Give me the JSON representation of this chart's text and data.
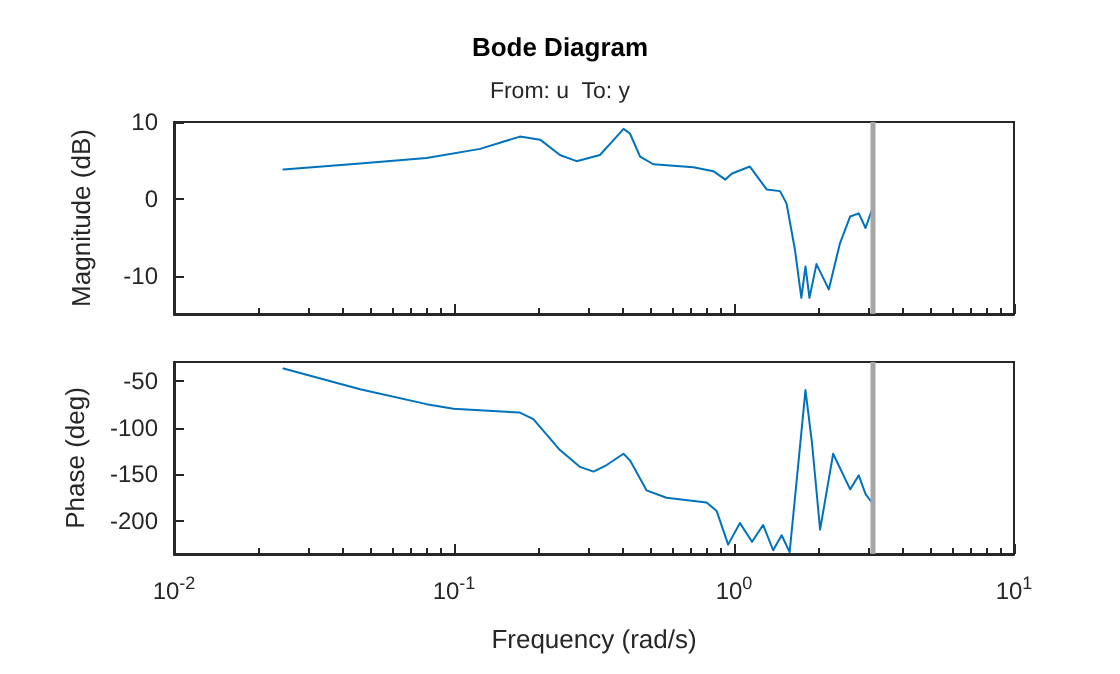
{
  "chart_data": [
    {
      "type": "line",
      "title": "Bode Diagram",
      "subtitle": "From: u  To: y",
      "ylabel": "Magnitude (dB)",
      "log": "x",
      "grid": false,
      "marker": "none",
      "line_style": "solid",
      "tick_labels": "y",
      "xlim": [
        0.01,
        10
      ],
      "xticks": [
        {
          "value": 0.01,
          "label": null
        },
        {
          "value": 0.1,
          "label": null
        },
        {
          "value": 1,
          "label": null
        },
        {
          "value": 10,
          "label": null
        }
      ],
      "ylim": [
        -15,
        10
      ],
      "yticks": [
        -10,
        0,
        10
      ],
      "ref_lines": [
        {
          "axis": "x",
          "value": 3.1416,
          "label": null,
          "color": "#a6a6a6"
        }
      ],
      "series": [
        {
          "color": "#0072bd",
          "x": [
            0.0246,
            0.0462,
            0.0798,
            0.124,
            0.172,
            0.203,
            0.239,
            0.274,
            0.332,
            0.381,
            0.403,
            0.425,
            0.462,
            0.515,
            0.716,
            0.844,
            0.931,
            0.984,
            1.14,
            1.31,
            1.46,
            1.54,
            1.65,
            1.74,
            1.8,
            1.86,
            1.97,
            2.18,
            2.39,
            2.6,
            2.79,
            2.95,
            3.11
          ],
          "values": [
            3.8,
            4.6,
            5.3,
            6.5,
            8.1,
            7.7,
            5.7,
            4.9,
            5.7,
            8.1,
            9.1,
            8.5,
            5.5,
            4.5,
            4.1,
            3.6,
            2.5,
            3.3,
            4.2,
            1.2,
            1.0,
            -0.6,
            -6.6,
            -12.9,
            -8.8,
            -12.9,
            -8.5,
            -11.8,
            -5.8,
            -2.3,
            -1.9,
            -3.8,
            -1.4
          ]
        }
      ]
    },
    {
      "type": "line",
      "ylabel": "Phase (deg)",
      "xlabel": "Frequency (rad/s)",
      "log": "x",
      "grid": false,
      "marker": "none",
      "line_style": "solid",
      "xlim": [
        0.01,
        10
      ],
      "xticks": [
        {
          "value": 0.01,
          "label": "10$^{-2}$"
        },
        {
          "value": 0.1,
          "label": "10$^{-1}$"
        },
        {
          "value": 1,
          "label": "10$^{0}$"
        },
        {
          "value": 10,
          "label": "10$^{1}$"
        }
      ],
      "ylim": [
        -235,
        -30
      ],
      "yticks": [
        -200,
        -150,
        -100,
        -50
      ],
      "ref_lines": [
        {
          "axis": "x",
          "value": 3.1416,
          "label": null,
          "color": "#a6a6a6"
        }
      ],
      "series": [
        {
          "color": "#0072bd",
          "x": [
            0.0246,
            0.0462,
            0.0798,
            0.0995,
            0.172,
            0.192,
            0.239,
            0.282,
            0.315,
            0.351,
            0.403,
            0.425,
            0.487,
            0.574,
            0.798,
            0.867,
            0.953,
            1.05,
            1.16,
            1.27,
            1.38,
            1.48,
            1.58,
            1.67,
            1.8,
            1.9,
            2.03,
            2.26,
            2.6,
            2.79,
            2.95,
            3.11
          ],
          "values": [
            -37,
            -59,
            -75,
            -80,
            -84,
            -91,
            -124,
            -142,
            -147,
            -140,
            -128,
            -135,
            -167,
            -175,
            -180,
            -189,
            -225,
            -202,
            -222,
            -204,
            -231,
            -215,
            -233,
            -160,
            -60,
            -117,
            -209,
            -128,
            -166,
            -151,
            -171,
            -180
          ]
        }
      ]
    }
  ]
}
